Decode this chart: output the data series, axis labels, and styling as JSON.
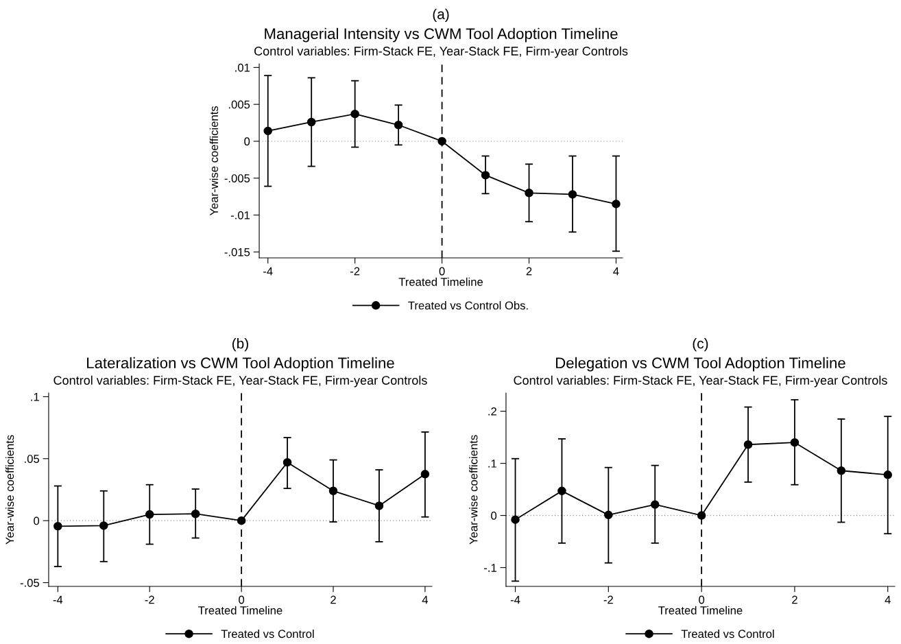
{
  "chart_data": [
    {
      "type": "line",
      "annotations": [
        "(a)"
      ],
      "title": "Managerial Intensity vs CWM Tool Adoption Timeline",
      "subtitle": "Control variables: Firm-Stack FE, Year-Stack FE, Firm-year Controls",
      "xlabel": "Treated Timeline",
      "ylabel": "Year-wise coefficients",
      "x": [
        -4,
        -3,
        -2,
        -1,
        0,
        1,
        2,
        3,
        4
      ],
      "series": [
        {
          "name": "Treated vs Control Obs.",
          "color": "#000000",
          "values": [
            0.0014,
            0.0026,
            0.0037,
            0.0022,
            0,
            -0.0046,
            -0.007,
            -0.0072,
            -0.0085
          ],
          "errors": [
            [
              -0.0061,
              0.0089
            ],
            [
              -0.0034,
              0.0086
            ],
            [
              -0.0008,
              0.0082
            ],
            [
              -0.0005,
              0.0049
            ],
            null,
            [
              -0.0071,
              -0.002
            ],
            [
              -0.0109,
              -0.0031
            ],
            [
              -0.0123,
              -0.002
            ],
            [
              -0.0149,
              -0.002
            ]
          ]
        }
      ],
      "xlim": [
        -4.2,
        4.15
      ],
      "xticks": [
        -4,
        -2,
        0,
        2,
        4
      ],
      "ylim": [
        -0.0158,
        0.0105
      ],
      "yticks": [
        {
          "value": -0.015,
          "label": "-.015"
        },
        {
          "value": -0.01,
          "label": "-.01"
        },
        {
          "value": -0.005,
          "label": "-.005"
        },
        0,
        {
          "value": 0.005,
          "label": ".005"
        },
        {
          "value": 0.01,
          "label": ".01"
        }
      ],
      "ref_lines": [
        {
          "axis": "x",
          "value": 0,
          "color": "#000000",
          "line_style": "dashed"
        },
        {
          "axis": "y",
          "value": 0,
          "color": "#808080",
          "line_style": "dotted"
        }
      ],
      "marker": "circle",
      "line_style": "solid",
      "grid": false,
      "legend": "bottom"
    },
    {
      "type": "line",
      "annotations": [
        "(b)"
      ],
      "title": "Lateralization vs CWM Tool Adoption Timeline",
      "subtitle": "Control variables: Firm-Stack FE, Year-Stack FE, Firm-year Controls",
      "xlabel": "Treated Timeline",
      "ylabel": "Year-wise coefficients",
      "x": [
        -4,
        -3,
        -2,
        -1,
        0,
        1,
        2,
        3,
        4
      ],
      "series": [
        {
          "name": "Treated vs Control",
          "color": "#000000",
          "values": [
            -0.0045,
            -0.004,
            0.005,
            0.0055,
            0,
            0.047,
            0.024,
            0.012,
            0.0375
          ],
          "errors": [
            [
              -0.037,
              0.028
            ],
            [
              -0.033,
              0.024
            ],
            [
              -0.019,
              0.029
            ],
            [
              -0.014,
              0.0255
            ],
            null,
            [
              0.026,
              0.067
            ],
            [
              -0.001,
              0.049
            ],
            [
              -0.017,
              0.041
            ],
            [
              0.003,
              0.0715
            ]
          ]
        }
      ],
      "xlim": [
        -4.2,
        4.15
      ],
      "xticks": [
        -4,
        -2,
        0,
        2,
        4
      ],
      "ylim": [
        -0.053,
        0.103
      ],
      "yticks": [
        {
          "value": -0.05,
          "label": "-.05"
        },
        0,
        {
          "value": 0.05,
          "label": ".05"
        },
        {
          "value": 0.1,
          "label": ".1"
        }
      ],
      "ref_lines": [
        {
          "axis": "x",
          "value": 0,
          "color": "#000000",
          "line_style": "dashed"
        },
        {
          "axis": "y",
          "value": 0,
          "color": "#808080",
          "line_style": "dotted"
        }
      ],
      "marker": "circle",
      "line_style": "solid",
      "grid": false,
      "legend": "bottom"
    },
    {
      "type": "line",
      "annotations": [
        "(c)"
      ],
      "title": "Delegation vs CWM Tool Adoption Timeline",
      "subtitle": "Control variables: Firm-Stack FE, Year-Stack FE, Firm-year Controls",
      "xlabel": "Treated Timeline",
      "ylabel": "Year-wise coefficients",
      "x": [
        -4,
        -3,
        -2,
        -1,
        0,
        1,
        2,
        3,
        4
      ],
      "series": [
        {
          "name": "Treated vs Control",
          "color": "#000000",
          "values": [
            -0.008,
            0.047,
            0.001,
            0.021,
            0,
            0.136,
            0.14,
            0.086,
            0.078
          ],
          "errors": [
            [
              -0.126,
              0.109
            ],
            [
              -0.053,
              0.147
            ],
            [
              -0.091,
              0.092
            ],
            [
              -0.053,
              0.096
            ],
            null,
            [
              0.064,
              0.208
            ],
            [
              0.059,
              0.222
            ],
            [
              -0.013,
              0.185
            ],
            [
              -0.035,
              0.19
            ]
          ]
        }
      ],
      "xlim": [
        -4.2,
        4.15
      ],
      "xticks": [
        -4,
        -2,
        0,
        2,
        4
      ],
      "ylim": [
        -0.136,
        0.235
      ],
      "yticks": [
        {
          "value": -0.1,
          "label": "-.1"
        },
        0,
        {
          "value": 0.1,
          "label": ".1"
        },
        {
          "value": 0.2,
          "label": ".2"
        }
      ],
      "ref_lines": [
        {
          "axis": "x",
          "value": 0,
          "color": "#000000",
          "line_style": "dashed"
        },
        {
          "axis": "y",
          "value": 0,
          "color": "#808080",
          "line_style": "dotted"
        }
      ],
      "marker": "circle",
      "line_style": "solid",
      "grid": false,
      "legend": "bottom"
    }
  ]
}
